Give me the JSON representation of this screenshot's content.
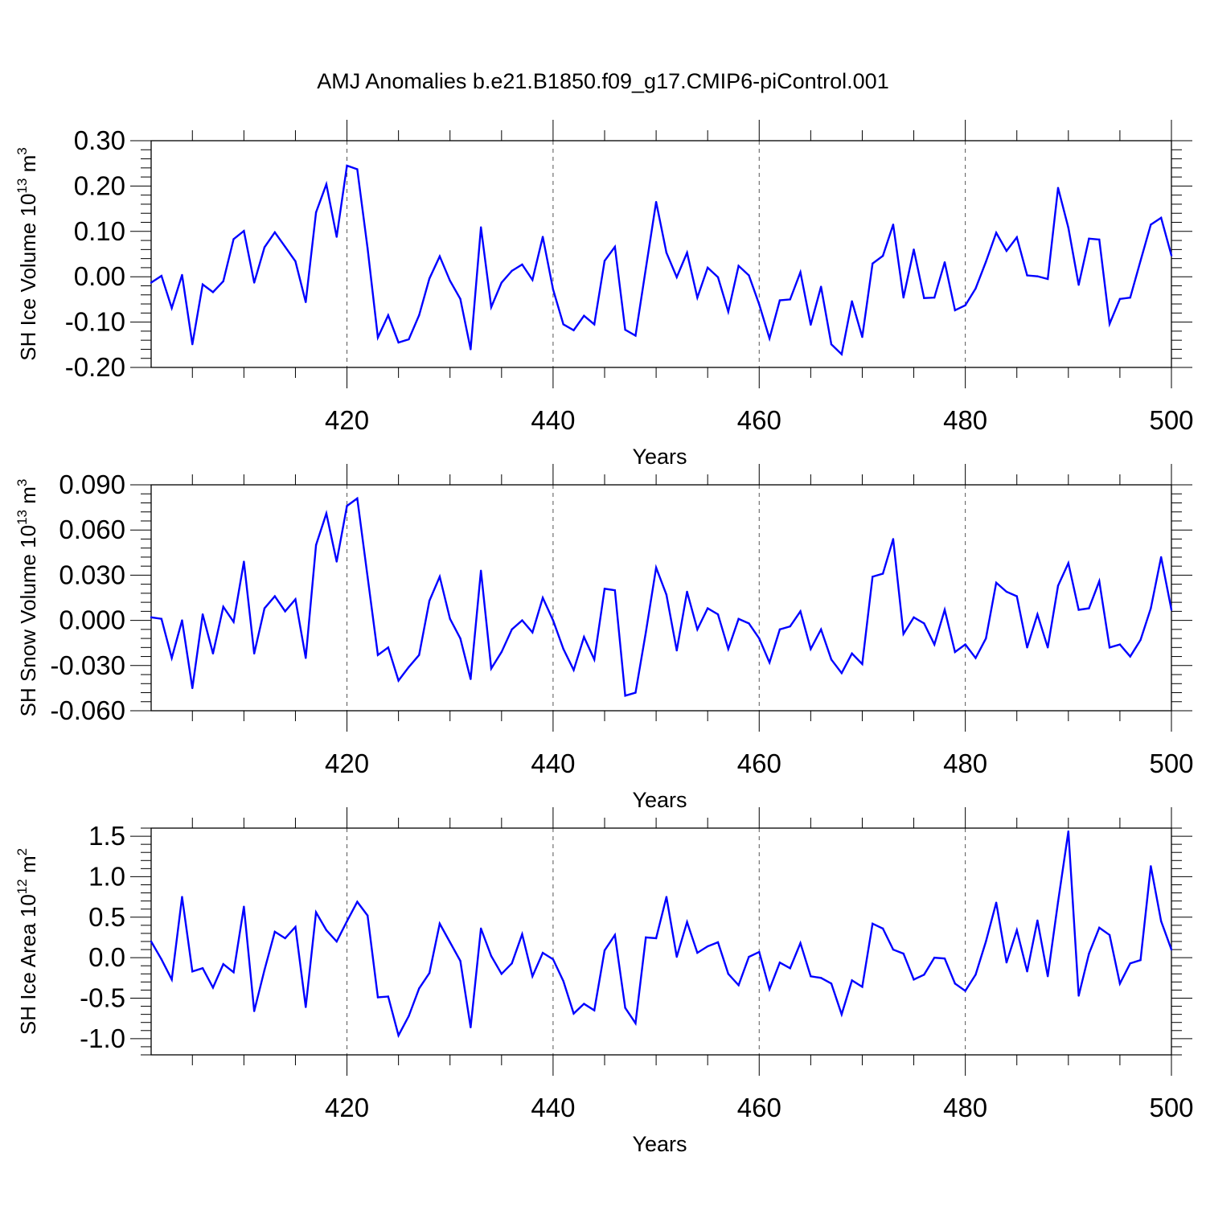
{
  "page": {
    "title": "AMJ Anomalies b.e21.B1850.f09_g17.CMIP6-piControl.001"
  },
  "chart_data": [
    {
      "type": "line",
      "title": "AMJ Anomalies b.e21.B1850.f09_g17.CMIP6-piControl.001",
      "ylabel": "SH Ice Volume",
      "ylabel_unit_base": "10",
      "ylabel_unit_exp": "13",
      "ylabel_unit_suffix": "m",
      "ylabel_unit_suffix_exp": "3",
      "xlabel": "Years",
      "xlim": [
        401,
        500
      ],
      "ylim": [
        -0.2,
        0.3
      ],
      "xticks": [
        "420",
        "440",
        "460",
        "480",
        "500"
      ],
      "yticks": [
        "-0.20",
        "-0.10",
        "0.00",
        "0.10",
        "0.20",
        "0.30"
      ],
      "color": "#0000ff",
      "x_start": 401,
      "values": [
        -0.013,
        0.002,
        -0.069,
        0.004,
        -0.149,
        -0.017,
        -0.034,
        -0.01,
        0.083,
        0.101,
        -0.013,
        0.065,
        0.098,
        0.066,
        0.034,
        -0.056,
        0.142,
        0.204,
        0.088,
        0.245,
        0.237,
        0.063,
        -0.134,
        -0.085,
        -0.145,
        -0.138,
        -0.085,
        -0.004,
        0.045,
        -0.009,
        -0.049,
        -0.16,
        0.109,
        -0.067,
        -0.013,
        0.013,
        0.027,
        -0.007,
        0.088,
        -0.028,
        -0.105,
        -0.118,
        -0.086,
        -0.105,
        0.035,
        0.066,
        -0.117,
        -0.13,
        0.018,
        0.165,
        0.053,
        -0.001,
        0.053,
        -0.046,
        0.02,
        -0.001,
        -0.077,
        0.024,
        0.003,
        -0.061,
        -0.136,
        -0.052,
        -0.05,
        0.01,
        -0.106,
        -0.022,
        -0.149,
        -0.171,
        -0.054,
        -0.133,
        0.029,
        0.046,
        0.115,
        -0.046,
        0.06,
        -0.047,
        -0.046,
        0.032,
        -0.074,
        -0.063,
        -0.026,
        0.033,
        0.097,
        0.057,
        0.087,
        0.003,
        0.001,
        -0.005,
        0.196,
        0.108,
        -0.018,
        0.084,
        0.082,
        -0.104,
        -0.049,
        -0.046,
        0.035,
        0.115,
        0.13,
        0.047
      ]
    },
    {
      "type": "line",
      "ylabel": "SH Snow Volume",
      "ylabel_unit_base": "10",
      "ylabel_unit_exp": "13",
      "ylabel_unit_suffix": "m",
      "ylabel_unit_suffix_exp": "3",
      "xlabel": "Years",
      "xlim": [
        401,
        500
      ],
      "ylim": [
        -0.06,
        0.09
      ],
      "xticks": [
        "420",
        "440",
        "460",
        "480",
        "500"
      ],
      "yticks": [
        "-0.060",
        "-0.030",
        "0.000",
        "0.030",
        "0.060",
        "0.090"
      ],
      "color": "#0000ff",
      "x_start": 401,
      "values": [
        0.002,
        0.001,
        -0.025,
        0.0,
        -0.045,
        0.004,
        -0.022,
        0.009,
        -0.001,
        0.039,
        -0.022,
        0.008,
        0.016,
        0.006,
        0.014,
        -0.025,
        0.05,
        0.071,
        0.039,
        0.076,
        0.081,
        0.029,
        -0.023,
        -0.018,
        -0.04,
        -0.031,
        -0.023,
        0.013,
        0.029,
        0.001,
        -0.012,
        -0.039,
        0.033,
        -0.032,
        -0.021,
        -0.006,
        0.0,
        -0.008,
        0.015,
        0.0,
        -0.019,
        -0.033,
        -0.011,
        -0.026,
        0.021,
        0.02,
        -0.05,
        -0.048,
        -0.008,
        0.035,
        0.017,
        -0.02,
        0.019,
        -0.006,
        0.008,
        0.004,
        -0.019,
        0.001,
        -0.002,
        -0.012,
        -0.028,
        -0.006,
        -0.004,
        0.006,
        -0.019,
        -0.006,
        -0.026,
        -0.035,
        -0.022,
        -0.029,
        0.029,
        0.031,
        0.054,
        -0.009,
        0.002,
        -0.002,
        -0.016,
        0.007,
        -0.021,
        -0.016,
        -0.025,
        -0.012,
        0.025,
        0.019,
        0.016,
        -0.018,
        0.004,
        -0.018,
        0.023,
        0.038,
        0.007,
        0.008,
        0.026,
        -0.018,
        -0.016,
        -0.024,
        -0.013,
        0.008,
        0.042,
        0.007
      ]
    },
    {
      "type": "line",
      "ylabel": "SH Ice Area",
      "ylabel_unit_base": "10",
      "ylabel_unit_exp": "12",
      "ylabel_unit_suffix": "m",
      "ylabel_unit_suffix_exp": "2",
      "xlabel": "Years",
      "xlim": [
        401,
        500
      ],
      "ylim": [
        -1.2,
        1.6
      ],
      "xticks": [
        "420",
        "440",
        "460",
        "480",
        "500"
      ],
      "yticks": [
        "-1.0",
        "-0.5",
        "0.0",
        "0.5",
        "1.0",
        "1.5"
      ],
      "color": "#0000ff",
      "x_start": 401,
      "values": [
        0.2,
        -0.02,
        -0.27,
        0.75,
        -0.17,
        -0.13,
        -0.37,
        -0.08,
        -0.18,
        0.63,
        -0.66,
        -0.15,
        0.32,
        0.24,
        0.38,
        -0.61,
        0.56,
        0.34,
        0.2,
        0.45,
        0.69,
        0.52,
        -0.49,
        -0.48,
        -0.96,
        -0.72,
        -0.38,
        -0.19,
        0.42,
        0.19,
        -0.04,
        -0.86,
        0.36,
        0.02,
        -0.2,
        -0.07,
        0.29,
        -0.23,
        0.06,
        -0.02,
        -0.29,
        -0.69,
        -0.57,
        -0.65,
        0.09,
        0.28,
        -0.62,
        -0.81,
        0.25,
        0.24,
        0.75,
        0.01,
        0.44,
        0.06,
        0.14,
        0.19,
        -0.2,
        -0.34,
        0.01,
        0.07,
        -0.39,
        -0.06,
        -0.13,
        0.18,
        -0.23,
        -0.25,
        -0.32,
        -0.7,
        -0.28,
        -0.36,
        0.42,
        0.36,
        0.1,
        0.05,
        -0.27,
        -0.21,
        0.0,
        -0.01,
        -0.32,
        -0.41,
        -0.21,
        0.2,
        0.68,
        -0.06,
        0.34,
        -0.17,
        0.46,
        -0.23,
        0.69,
        1.56,
        -0.47,
        0.05,
        0.37,
        0.28,
        -0.32,
        -0.07,
        -0.03,
        1.13,
        0.45,
        0.1
      ]
    }
  ]
}
